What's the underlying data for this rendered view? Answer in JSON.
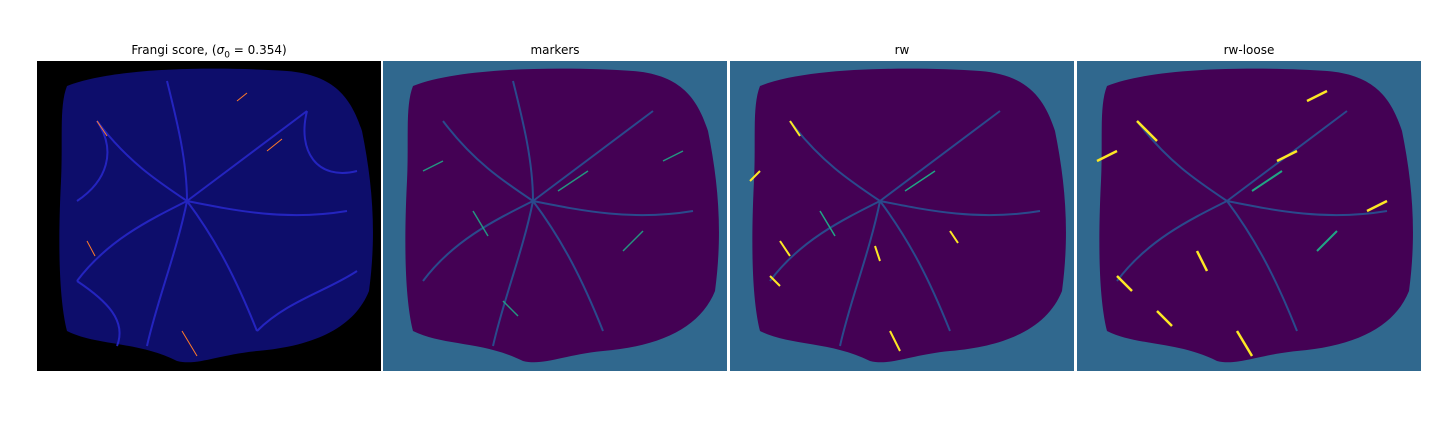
{
  "figure": {
    "panels": [
      {
        "id": "frangi",
        "title_prefix": "Frangi score, (",
        "title_symbol": "σ",
        "title_sub": "0",
        "title_suffix": " = 0.354)",
        "background_color": "#000000",
        "mask_color": "#0d0d6b",
        "vessel_color": "#2727c9",
        "highlight_color": "#ff7a2a"
      },
      {
        "id": "markers",
        "title": "markers",
        "background_color": "#30688e",
        "mask_color": "#440154",
        "vessel_color": "#2a4a8c",
        "highlight_color": "#21a585"
      },
      {
        "id": "rw",
        "title": "rw",
        "background_color": "#30688e",
        "mask_color": "#440154",
        "vessel_color": "#2a4a8c",
        "highlight_color": "#fde725"
      },
      {
        "id": "rw-loose",
        "title": "rw-loose",
        "background_color": "#30688e",
        "mask_color": "#440154",
        "vessel_color": "#2a4a8c",
        "highlight_color": "#fde725"
      }
    ]
  }
}
